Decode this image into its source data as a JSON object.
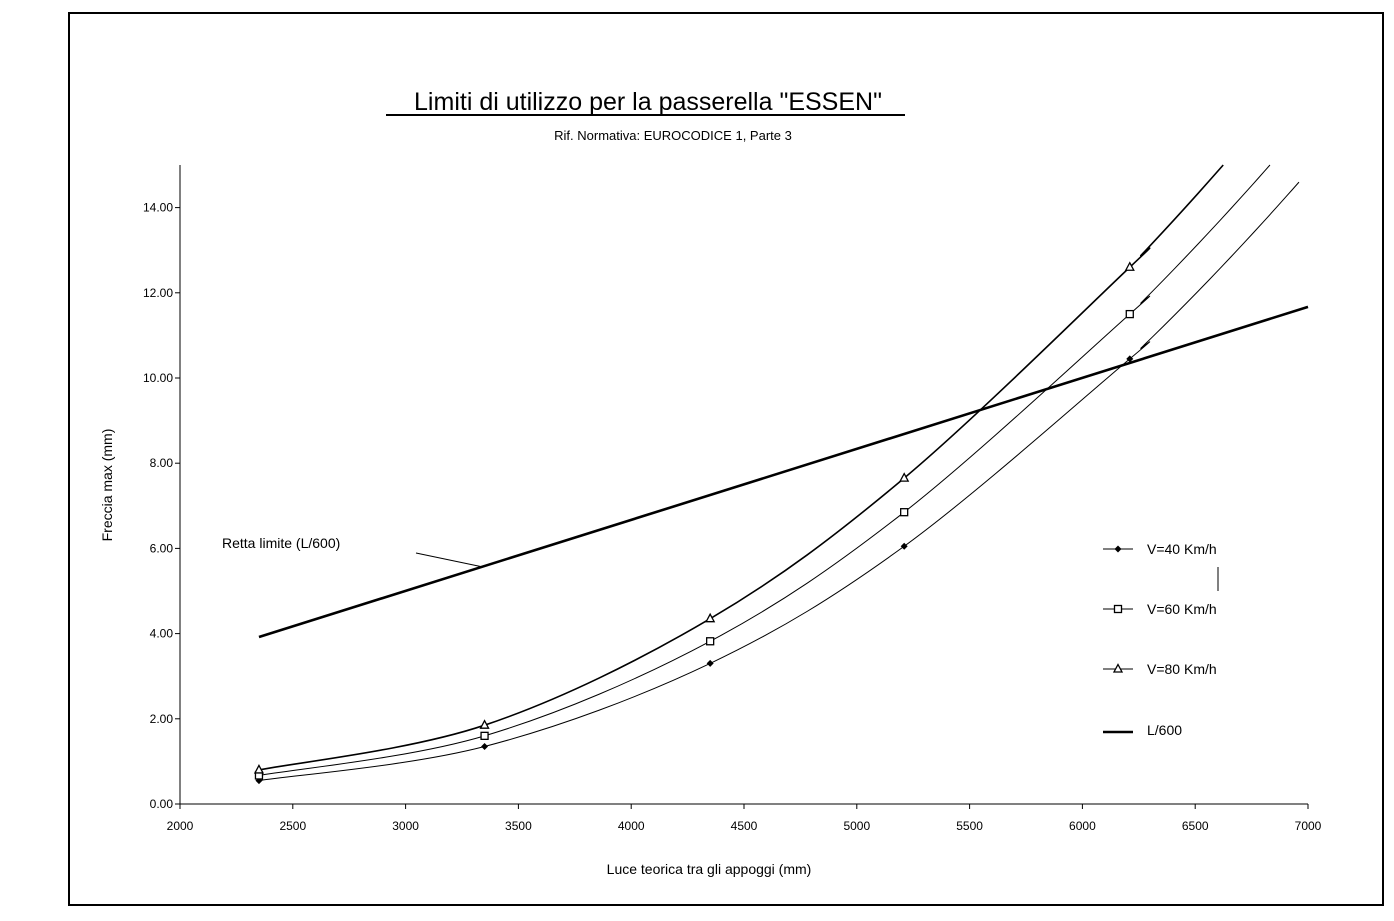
{
  "chart_data": {
    "type": "line",
    "title": "Limiti di utilizzo per la passerella \"ESSEN\"",
    "subtitle": "Rif. Normativa: EUROCODICE 1, Parte 3",
    "xlabel": "Luce teorica tra gli appoggi (mm)",
    "ylabel": "Freccia max (mm)",
    "xlim": [
      2000,
      7000
    ],
    "ylim": [
      0,
      15
    ],
    "x_ticks": [
      "2000",
      "2500",
      "3000",
      "3500",
      "4000",
      "4500",
      "5000",
      "5500",
      "6000",
      "6500",
      "7000"
    ],
    "y_ticks": [
      "0.00",
      "2.00",
      "4.00",
      "6.00",
      "8.00",
      "10.00",
      "12.00",
      "14.00"
    ],
    "grid": false,
    "legend_position": "right",
    "series": [
      {
        "name": "V=40 Km/h",
        "marker": "diamond",
        "x": [
          2350,
          3350,
          4350,
          5210,
          6210
        ],
        "y": [
          0.55,
          1.35,
          3.3,
          6.05,
          10.45
        ]
      },
      {
        "name": "V=60 Km/h",
        "marker": "square",
        "x": [
          2350,
          3350,
          4350,
          5210,
          6210
        ],
        "y": [
          0.67,
          1.6,
          3.82,
          6.85,
          11.5
        ]
      },
      {
        "name": "V=80 Km/h",
        "marker": "triangle",
        "x": [
          2350,
          3350,
          4350,
          5210,
          6210
        ],
        "y": [
          0.8,
          1.85,
          4.35,
          7.65,
          12.6
        ]
      },
      {
        "name": "L/600",
        "marker": "none",
        "x": [
          2350,
          7000
        ],
        "y": [
          3.92,
          11.67
        ]
      }
    ],
    "annotations": [
      {
        "text": "Retta limite (L/600)"
      }
    ]
  }
}
